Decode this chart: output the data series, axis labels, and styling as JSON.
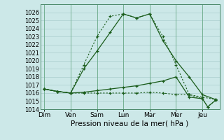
{
  "xlabel": "Pression niveau de la mer( hPa )",
  "bg_color": "#cce8e8",
  "grid_color": "#aacece",
  "line_color": "#1a5c1a",
  "x_labels": [
    "Dim",
    "Ven",
    "Sam",
    "Lun",
    "Mar",
    "Mer",
    "Jeu"
  ],
  "x_positions": [
    0,
    1,
    2,
    3,
    4,
    5,
    6
  ],
  "ylim": [
    1014,
    1027
  ],
  "yticks": [
    1014,
    1015,
    1016,
    1017,
    1018,
    1019,
    1020,
    1021,
    1022,
    1023,
    1024,
    1025,
    1026
  ],
  "line_peak_solid": {
    "x": [
      0,
      0.5,
      1.0,
      1.5,
      2.0,
      2.5,
      3.0,
      3.5,
      4.0,
      4.5,
      5.0,
      5.5,
      6.0,
      6.5
    ],
    "y": [
      1016.5,
      1016.2,
      1016.0,
      1019.0,
      1021.2,
      1023.5,
      1025.8,
      1025.3,
      1025.8,
      1022.5,
      1020.0,
      1018.0,
      1015.8,
      1015.2
    ]
  },
  "line_peak_dotted": {
    "x": [
      0,
      0.5,
      1.0,
      1.5,
      2.0,
      2.5,
      3.0,
      3.5,
      4.0,
      4.5,
      5.0,
      5.5,
      6.0,
      6.5
    ],
    "y": [
      1016.5,
      1016.2,
      1016.0,
      1019.5,
      1023.0,
      1025.5,
      1025.8,
      1025.3,
      1025.8,
      1023.0,
      1019.5,
      1015.8,
      1015.5,
      1015.2
    ]
  },
  "line_gradual_solid": {
    "x": [
      0,
      0.5,
      1.0,
      1.5,
      2.0,
      2.5,
      3.0,
      3.5,
      4.0,
      4.5,
      5.0,
      5.5,
      6.0,
      6.2,
      6.5
    ],
    "y": [
      1016.5,
      1016.2,
      1016.0,
      1016.1,
      1016.3,
      1016.5,
      1016.7,
      1016.9,
      1017.2,
      1017.5,
      1018.0,
      1015.5,
      1015.3,
      1014.3,
      1015.1
    ]
  },
  "line_flat_dotted": {
    "x": [
      0,
      0.5,
      1.0,
      1.5,
      2.0,
      2.5,
      3.0,
      3.5,
      4.0,
      4.5,
      5.0,
      5.5,
      6.0,
      6.2,
      6.5
    ],
    "y": [
      1016.5,
      1016.2,
      1016.0,
      1016.0,
      1016.0,
      1016.0,
      1016.0,
      1016.0,
      1016.1,
      1016.0,
      1015.8,
      1015.8,
      1015.3,
      1014.3,
      1015.1
    ]
  }
}
